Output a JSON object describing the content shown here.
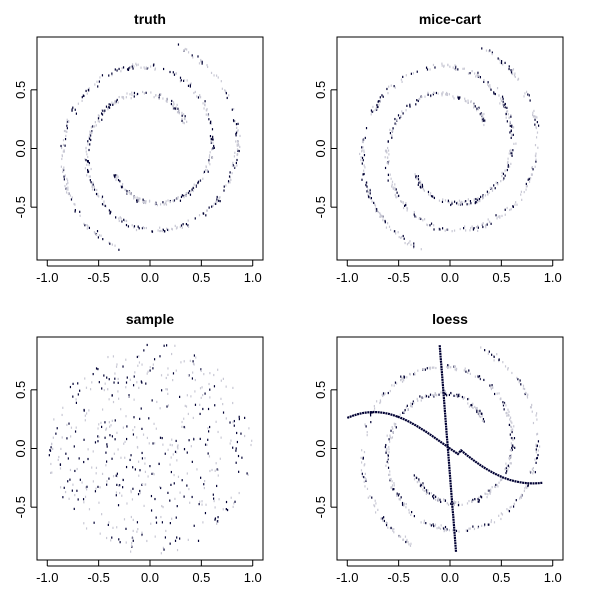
{
  "colors": {
    "light_point": "#c8c8d4",
    "dark_point": "#000033",
    "frame": "#000000",
    "background": "#ffffff"
  },
  "chart_data": [
    {
      "type": "scatter",
      "title": "truth",
      "shape": "spiral",
      "xlabel": "",
      "ylabel": "",
      "xlim": [
        -1.1,
        1.1
      ],
      "ylim": [
        -0.95,
        0.95
      ],
      "xticks": [
        -1.0,
        -0.5,
        0.0,
        0.5,
        1.0
      ],
      "xtick_labels": [
        "-1.0",
        "-0.5",
        "0.0",
        "0.5",
        "1.0"
      ],
      "yticks": [
        -0.5,
        0.0,
        0.5
      ],
      "ytick_labels": [
        "-0.5",
        "0.0",
        "0.5"
      ],
      "grid": false
    },
    {
      "type": "scatter",
      "title": "mice-cart",
      "shape": "spiral",
      "xlabel": "",
      "ylabel": "",
      "xlim": [
        -1.1,
        1.1
      ],
      "ylim": [
        -0.95,
        0.95
      ],
      "xticks": [
        -1.0,
        -0.5,
        0.0,
        0.5,
        1.0
      ],
      "xtick_labels": [
        "-1.0",
        "-0.5",
        "0.0",
        "0.5",
        "1.0"
      ],
      "yticks": [
        -0.5,
        0.0,
        0.5
      ],
      "ytick_labels": [
        "-0.5",
        "0.0",
        "0.5"
      ],
      "grid": false
    },
    {
      "type": "scatter",
      "title": "sample",
      "shape": "uniform",
      "xlabel": "",
      "ylabel": "",
      "xlim": [
        -1.1,
        1.1
      ],
      "ylim": [
        -0.95,
        0.95
      ],
      "xticks": [
        -1.0,
        -0.5,
        0.0,
        0.5,
        1.0
      ],
      "xtick_labels": [
        "-1.0",
        "-0.5",
        "0.0",
        "0.5",
        "1.0"
      ],
      "yticks": [
        -0.5,
        0.0,
        0.5
      ],
      "ytick_labels": [
        "-0.5",
        "0.0",
        "0.5"
      ],
      "grid": false
    },
    {
      "type": "scatter",
      "title": "loess",
      "shape": "spiral-with-curves",
      "xlabel": "",
      "ylabel": "",
      "xlim": [
        -1.1,
        1.1
      ],
      "ylim": [
        -0.95,
        0.95
      ],
      "xticks": [
        -1.0,
        -0.5,
        0.0,
        0.5,
        1.0
      ],
      "xtick_labels": [
        "-1.0",
        "-0.5",
        "0.0",
        "0.5",
        "1.0"
      ],
      "yticks": [
        -0.5,
        0.0,
        0.5
      ],
      "ytick_labels": [
        "-0.5",
        "0.0",
        "0.5"
      ],
      "grid": false
    }
  ]
}
